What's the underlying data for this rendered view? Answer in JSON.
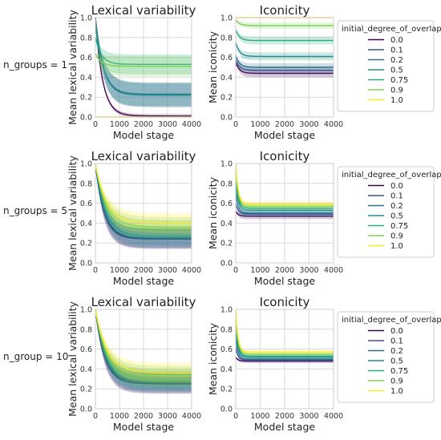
{
  "chart_data": [
    {
      "type": "line",
      "row_label": "n_groups = 1",
      "title": "Lexical variability",
      "xlabel": "Model stage",
      "ylabel": "Mean lexical variability",
      "xlim": [
        0,
        4000
      ],
      "ylim": [
        0,
        1.0
      ],
      "xticks": [
        "0",
        "1000",
        "2000",
        "3000",
        "4000"
      ],
      "yticks": [
        "0.0",
        "0.2",
        "0.4",
        "0.6",
        "0.8",
        "1.0"
      ],
      "grid": true,
      "series": [
        {
          "name": "0.0",
          "start": 1.0,
          "end": 0.01,
          "tau": 300,
          "band": 0.02
        },
        {
          "name": "0.1",
          "start": 1.0,
          "end": 0.22,
          "tau": 320,
          "band": 0.12
        },
        {
          "name": "0.2",
          "start": 1.0,
          "end": 0.23,
          "tau": 320,
          "band": 0.12
        },
        {
          "name": "0.5",
          "start": 0.93,
          "end": 0.22,
          "tau": 350,
          "band": 0.12
        },
        {
          "name": "0.75",
          "start": 0.8,
          "end": 0.53,
          "tau": 250,
          "band": 0.1
        },
        {
          "name": "0.9",
          "start": 0.64,
          "end": 0.51,
          "tau": 250,
          "band": 0.1
        },
        {
          "name": "1.0",
          "start": 0.0,
          "end": 0.0,
          "tau": 100,
          "band": 0.0
        }
      ]
    },
    {
      "type": "line",
      "row_label": "n_groups = 1",
      "title": "Iconicity",
      "xlabel": "Model stage",
      "ylabel": "Mean iconicity",
      "xlim": [
        0,
        4000
      ],
      "ylim": [
        0,
        1.0
      ],
      "xticks": [
        "0",
        "1000",
        "2000",
        "3000",
        "4000"
      ],
      "yticks": [
        "0.0",
        "0.2",
        "0.4",
        "0.6",
        "0.8",
        "1.0"
      ],
      "grid": true,
      "series": [
        {
          "name": "0.0",
          "start": 0.55,
          "end": 0.44,
          "tau": 150,
          "band": 0.04
        },
        {
          "name": "0.1",
          "start": 0.58,
          "end": 0.47,
          "tau": 150,
          "band": 0.04
        },
        {
          "name": "0.2",
          "start": 0.62,
          "end": 0.5,
          "tau": 150,
          "band": 0.04
        },
        {
          "name": "0.5",
          "start": 0.75,
          "end": 0.61,
          "tau": 150,
          "band": 0.04
        },
        {
          "name": "0.75",
          "start": 0.88,
          "end": 0.77,
          "tau": 150,
          "band": 0.04
        },
        {
          "name": "0.9",
          "start": 0.98,
          "end": 0.92,
          "tau": 150,
          "band": 0.03
        },
        {
          "name": "1.0",
          "start": 1.0,
          "end": 1.0,
          "tau": 100,
          "band": 0.0
        }
      ],
      "legend": {
        "title": "initial_degree_of_overlap",
        "entries": [
          "0.0",
          "0.1",
          "0.2",
          "0.5",
          "0.75",
          "0.9",
          "1.0"
        ],
        "placement": "outside right"
      }
    },
    {
      "type": "line",
      "row_label": "n_groups = 5",
      "title": "Lexical variability",
      "xlabel": "Model stage",
      "ylabel": "Mean lexical variability",
      "xlim": [
        0,
        4000
      ],
      "ylim": [
        0,
        1.0
      ],
      "xticks": [
        "0",
        "1000",
        "2000",
        "3000",
        "4000"
      ],
      "yticks": [
        "0.0",
        "0.2",
        "0.4",
        "0.6",
        "0.8",
        "1.0"
      ],
      "grid": true,
      "series": [
        {
          "name": "0.0",
          "start": 1.0,
          "end": 0.24,
          "tau": 350,
          "band": 0.1
        },
        {
          "name": "0.1",
          "start": 1.0,
          "end": 0.25,
          "tau": 360,
          "band": 0.1
        },
        {
          "name": "0.2",
          "start": 1.0,
          "end": 0.25,
          "tau": 370,
          "band": 0.1
        },
        {
          "name": "0.5",
          "start": 1.0,
          "end": 0.27,
          "tau": 400,
          "band": 0.1
        },
        {
          "name": "0.75",
          "start": 1.0,
          "end": 0.33,
          "tau": 420,
          "band": 0.1
        },
        {
          "name": "0.9",
          "start": 1.0,
          "end": 0.36,
          "tau": 450,
          "band": 0.1
        },
        {
          "name": "1.0",
          "start": 1.0,
          "end": 0.4,
          "tau": 450,
          "band": 0.1
        }
      ]
    },
    {
      "type": "line",
      "row_label": "n_groups = 5",
      "title": "Iconicity",
      "xlabel": "Model stage",
      "ylabel": "Mean iconicity",
      "xlim": [
        0,
        4000
      ],
      "ylim": [
        0,
        1.0
      ],
      "xticks": [
        "0",
        "1000",
        "2000",
        "3000",
        "4000"
      ],
      "yticks": [
        "0.0",
        "0.2",
        "0.4",
        "0.6",
        "0.8",
        "1.0"
      ],
      "grid": true,
      "series": [
        {
          "name": "0.0",
          "start": 0.52,
          "end": 0.47,
          "tau": 100,
          "band": 0.03
        },
        {
          "name": "0.1",
          "start": 0.6,
          "end": 0.49,
          "tau": 100,
          "band": 0.03
        },
        {
          "name": "0.2",
          "start": 0.7,
          "end": 0.5,
          "tau": 100,
          "band": 0.03
        },
        {
          "name": "0.5",
          "start": 0.8,
          "end": 0.53,
          "tau": 100,
          "band": 0.03
        },
        {
          "name": "0.75",
          "start": 0.88,
          "end": 0.55,
          "tau": 100,
          "band": 0.03
        },
        {
          "name": "0.9",
          "start": 0.95,
          "end": 0.57,
          "tau": 100,
          "band": 0.03
        },
        {
          "name": "1.0",
          "start": 1.0,
          "end": 0.59,
          "tau": 100,
          "band": 0.03
        }
      ],
      "legend": {
        "title": "initial_degree_of_overlap",
        "entries": [
          "0.0",
          "0.1",
          "0.2",
          "0.5",
          "0.75",
          "0.9",
          "1.0"
        ],
        "placement": "outside right"
      }
    },
    {
      "type": "line",
      "row_label": "n_group = 10",
      "title": "Lexical variability",
      "xlabel": "Model stage",
      "ylabel": "Mean lexical variability",
      "xlim": [
        0,
        4000
      ],
      "ylim": [
        0,
        1.0
      ],
      "xticks": [
        "0",
        "1000",
        "2000",
        "3000",
        "4000"
      ],
      "yticks": [
        "0.0",
        "0.2",
        "0.4",
        "0.6",
        "0.8",
        "1.0"
      ],
      "grid": true,
      "series": [
        {
          "name": "0.0",
          "start": 1.0,
          "end": 0.25,
          "tau": 380,
          "band": 0.1
        },
        {
          "name": "0.1",
          "start": 1.0,
          "end": 0.26,
          "tau": 390,
          "band": 0.1
        },
        {
          "name": "0.2",
          "start": 1.0,
          "end": 0.27,
          "tau": 400,
          "band": 0.1
        },
        {
          "name": "0.5",
          "start": 1.0,
          "end": 0.28,
          "tau": 420,
          "band": 0.1
        },
        {
          "name": "0.75",
          "start": 1.0,
          "end": 0.3,
          "tau": 440,
          "band": 0.1
        },
        {
          "name": "0.9",
          "start": 1.0,
          "end": 0.33,
          "tau": 460,
          "band": 0.1
        },
        {
          "name": "1.0",
          "start": 1.0,
          "end": 0.36,
          "tau": 480,
          "band": 0.1
        }
      ]
    },
    {
      "type": "line",
      "row_label": "n_group = 10",
      "title": "Iconicity",
      "xlabel": "Model stage",
      "ylabel": "Mean iconicity",
      "xlim": [
        0,
        4000
      ],
      "ylim": [
        0,
        1.0
      ],
      "xticks": [
        "0",
        "1000",
        "2000",
        "3000",
        "4000"
      ],
      "yticks": [
        "0.0",
        "0.2",
        "0.4",
        "0.6",
        "0.8",
        "1.0"
      ],
      "grid": true,
      "series": [
        {
          "name": "0.0",
          "start": 0.52,
          "end": 0.48,
          "tau": 90,
          "band": 0.02
        },
        {
          "name": "0.1",
          "start": 0.62,
          "end": 0.49,
          "tau": 90,
          "band": 0.02
        },
        {
          "name": "0.2",
          "start": 0.72,
          "end": 0.5,
          "tau": 90,
          "band": 0.02
        },
        {
          "name": "0.5",
          "start": 0.82,
          "end": 0.52,
          "tau": 90,
          "band": 0.02
        },
        {
          "name": "0.75",
          "start": 0.9,
          "end": 0.53,
          "tau": 90,
          "band": 0.02
        },
        {
          "name": "0.9",
          "start": 0.96,
          "end": 0.55,
          "tau": 90,
          "band": 0.02
        },
        {
          "name": "1.0",
          "start": 1.0,
          "end": 0.57,
          "tau": 90,
          "band": 0.02
        }
      ],
      "legend": {
        "title": "initial_degree_of_overlap",
        "entries": [
          "0.0",
          "0.1",
          "0.2",
          "0.5",
          "0.75",
          "0.9",
          "1.0"
        ],
        "placement": "outside right"
      }
    }
  ],
  "colors": {
    "0.0": "#440154",
    "0.1": "#3b528b",
    "0.2": "#2c728e",
    "0.5": "#21918c",
    "0.75": "#28ae80",
    "0.9": "#7ad151",
    "1.0": "#fde725"
  }
}
